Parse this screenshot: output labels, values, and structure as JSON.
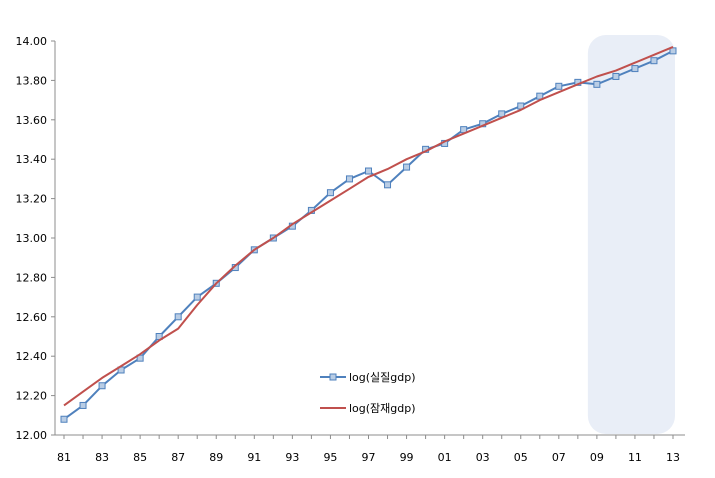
{
  "chart_data": {
    "type": "line",
    "x_tick_labels": [
      "81",
      "83",
      "85",
      "87",
      "89",
      "91",
      "93",
      "95",
      "97",
      "99",
      "01",
      "03",
      "05",
      "07",
      "09",
      "11",
      "13"
    ],
    "x": [
      1981,
      1982,
      1983,
      1984,
      1985,
      1986,
      1987,
      1988,
      1989,
      1990,
      1991,
      1992,
      1993,
      1994,
      1995,
      1996,
      1997,
      1998,
      1999,
      2000,
      2001,
      2002,
      2003,
      2004,
      2005,
      2006,
      2007,
      2008,
      2009,
      2010,
      2011,
      2012,
      2013
    ],
    "ylim": [
      12.0,
      14.0
    ],
    "y_ticks": [
      "12.00",
      "12.20",
      "12.40",
      "12.60",
      "12.80",
      "13.00",
      "13.20",
      "13.40",
      "13.60",
      "13.80",
      "14.00"
    ],
    "grid": false,
    "legend_position": "bottom-center",
    "shaded_region": {
      "x_start": 2009,
      "x_end": 2013,
      "color": "#e9eef7"
    },
    "series": [
      {
        "name": "log(실질gdp)",
        "color": "#4f81bd",
        "marker": "square",
        "values": [
          12.08,
          12.15,
          12.25,
          12.33,
          12.39,
          12.5,
          12.6,
          12.7,
          12.77,
          12.85,
          12.94,
          13.0,
          13.06,
          13.14,
          13.23,
          13.3,
          13.34,
          13.27,
          13.36,
          13.45,
          13.48,
          13.55,
          13.58,
          13.63,
          13.67,
          13.72,
          13.77,
          13.79,
          13.78,
          13.82,
          13.86,
          13.9,
          13.95
        ]
      },
      {
        "name": "log(잠재gdp)",
        "color": "#c0504d",
        "marker": "none",
        "values": [
          12.15,
          12.22,
          12.29,
          12.35,
          12.41,
          12.48,
          12.54,
          12.66,
          12.77,
          12.86,
          12.94,
          13.0,
          13.07,
          13.13,
          13.19,
          13.25,
          13.31,
          13.35,
          13.4,
          13.44,
          13.49,
          13.53,
          13.57,
          13.61,
          13.65,
          13.7,
          13.74,
          13.78,
          13.82,
          13.85,
          13.89,
          13.93,
          13.97
        ]
      }
    ]
  }
}
